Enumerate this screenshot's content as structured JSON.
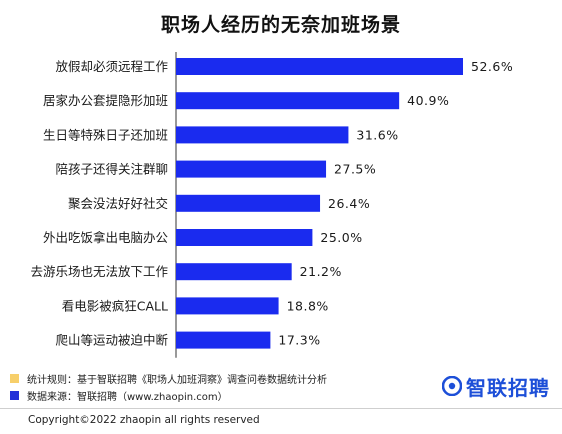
{
  "chart_data": {
    "type": "bar",
    "orientation": "horizontal",
    "title": "职场人经历的无奈加班场景",
    "categories": [
      "放假却必须远程工作",
      "居家办公套提隐形加班",
      "生日等特殊日子还加班",
      "陪孩子还得关注群聊",
      "聚会没法好好社交",
      "外出吃饭拿出电脑办公",
      "去游乐场也无法放下工作",
      "看电影被疯狂CALL",
      "爬山等运动被迫中断"
    ],
    "values": [
      52.6,
      40.9,
      31.6,
      27.5,
      26.4,
      25.0,
      21.2,
      18.8,
      17.3
    ],
    "value_labels": [
      "52.6%",
      "40.9%",
      "31.6%",
      "27.5%",
      "26.4%",
      "25.0%",
      "21.2%",
      "18.8%",
      "17.3%"
    ],
    "unit": "%",
    "xlim": [
      0,
      60
    ],
    "grid": false,
    "bar_color": "#1a2bef"
  },
  "notes": [
    {
      "text": "统计规则：基于智联招聘《职场人加班洞察》调查问卷数据统计分析",
      "color": "#f7cf6a"
    },
    {
      "text": "数据来源：智联招聘（www.zhaopin.com）",
      "color": "#2230d8"
    }
  ],
  "logo": {
    "text": "智联招聘",
    "icon": "zhaopin-logo-icon",
    "color": "#1d4fd8"
  },
  "copyright": "Copyright©2022 zhaopin all rights reserved"
}
